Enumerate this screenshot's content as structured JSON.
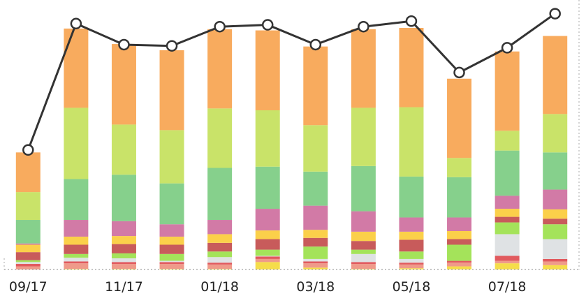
{
  "chart_data": {
    "type": "bar",
    "stacked": true,
    "title": "",
    "xlabel": "",
    "ylabel": "",
    "ylim": [
      0,
      400
    ],
    "grid": false,
    "legend": "none",
    "x_tick_labels": [
      "09/17",
      "11/17",
      "01/18",
      "03/18",
      "05/18",
      "07/18"
    ],
    "x_tick_indices": [
      0,
      2,
      4,
      6,
      8,
      10
    ],
    "categories": [
      "09/17",
      "10/17",
      "11/17",
      "12/17",
      "01/18",
      "02/18",
      "03/18",
      "04/18",
      "05/18",
      "06/18",
      "07/18",
      "08/18"
    ],
    "series": [
      {
        "color": "#f5dd4a",
        "values": [
          0,
          1,
          1,
          1,
          1,
          12,
          3,
          1,
          2,
          5,
          10,
          7
        ]
      },
      {
        "color": "#ef9a8a",
        "values": [
          5,
          9,
          8,
          8,
          7,
          5,
          7,
          8,
          6,
          6,
          4,
          6
        ]
      },
      {
        "color": "#e15a5e",
        "values": [
          4,
          3,
          3,
          3,
          3,
          4,
          3,
          3,
          3,
          3,
          8,
          4
        ]
      },
      {
        "color": "#dfe2e4",
        "values": [
          3,
          6,
          6,
          2,
          9,
          1,
          4,
          13,
          6,
          0,
          35,
          32
        ]
      },
      {
        "color": "#a4e35a",
        "values": [
          3,
          6,
          8,
          11,
          9,
          10,
          20,
          7,
          12,
          26,
          19,
          24
        ]
      },
      {
        "color": "#c85b5b",
        "values": [
          13,
          15,
          15,
          15,
          14,
          17,
          14,
          14,
          19,
          9,
          9,
          9
        ]
      },
      {
        "color": "#fbd04a",
        "values": [
          12,
          13,
          13,
          13,
          14,
          14,
          13,
          15,
          13,
          13,
          13,
          15
        ]
      },
      {
        "color": "#d27aa6",
        "values": [
          2,
          27,
          24,
          20,
          23,
          35,
          39,
          33,
          23,
          22,
          21,
          32
        ]
      },
      {
        "color": "#86d08c",
        "values": [
          38,
          66,
          75,
          66,
          84,
          68,
          55,
          73,
          66,
          65,
          73,
          60
        ]
      },
      {
        "color": "#c9e369",
        "values": [
          45,
          115,
          81,
          86,
          96,
          91,
          75,
          94,
          112,
          31,
          32,
          62
        ]
      },
      {
        "color": "#f8ab5e",
        "values": [
          64,
          128,
          130,
          129,
          128,
          129,
          127,
          127,
          128,
          128,
          128,
          126
        ]
      }
    ],
    "line": {
      "color": "#333333",
      "marker_fill": "#ffffff",
      "values": [
        193,
        397,
        363,
        361,
        392,
        395,
        363,
        392,
        401,
        318,
        358,
        413
      ]
    }
  }
}
